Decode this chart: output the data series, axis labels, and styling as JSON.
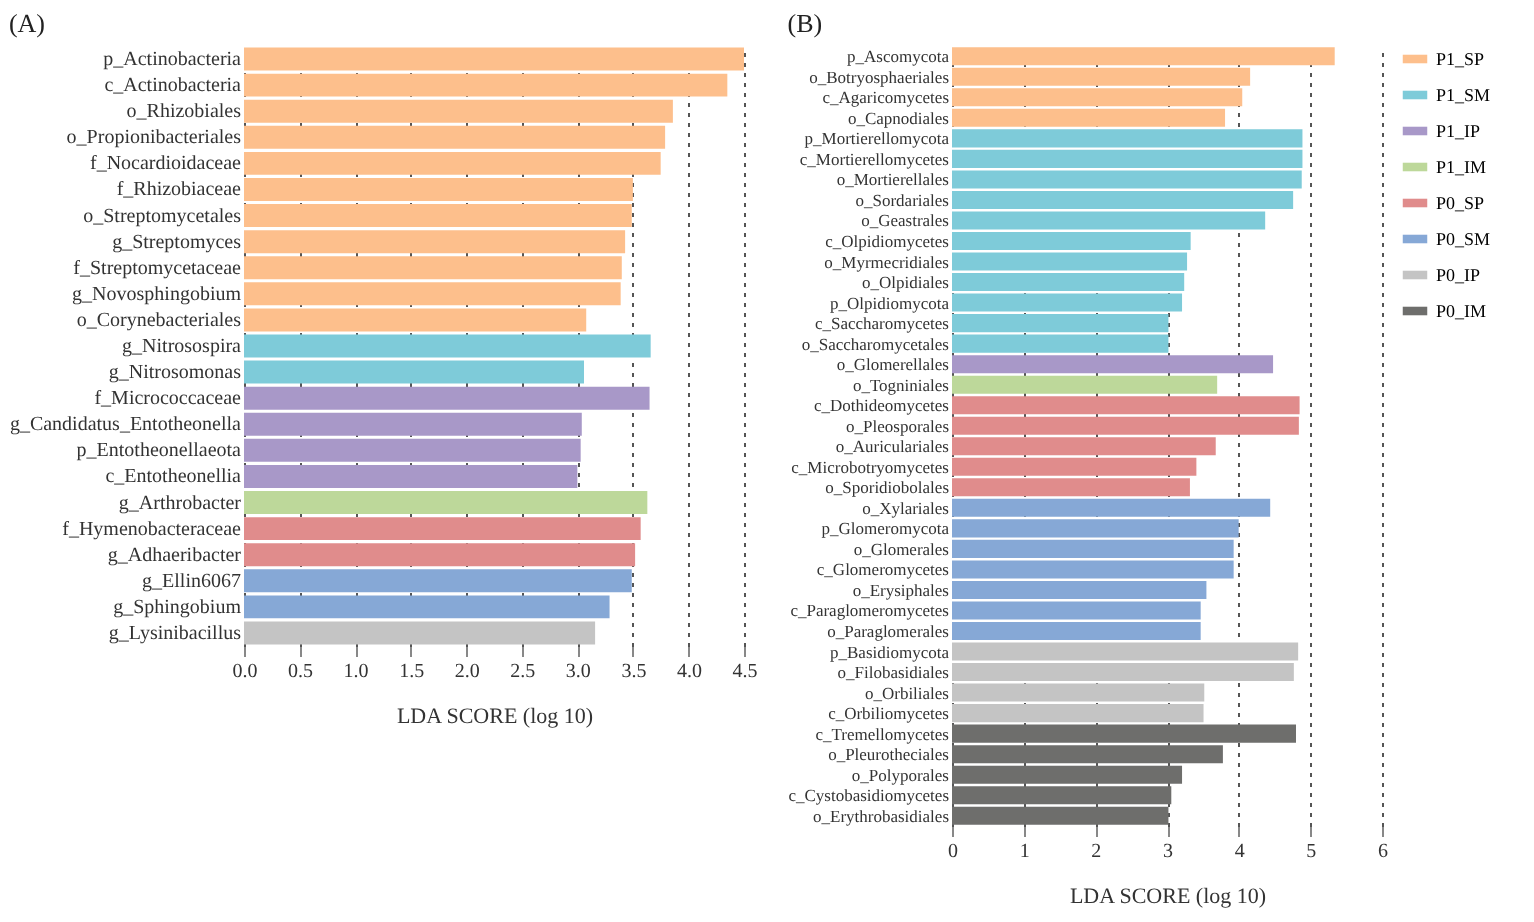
{
  "chart_data": [
    {
      "type": "bar",
      "orientation": "horizontal",
      "title": "(A)",
      "xlabel": "LDA SCORE (log 10)",
      "categories": [
        "p_Actinobacteria",
        "c_Actinobacteria",
        "o_Rhizobiales",
        "o_Propionibacteriales",
        "f_Nocardioidaceae",
        "f_Rhizobiaceae",
        "o_Streptomycetales",
        "g_Streptomyces",
        "f_Streptomycetaceae",
        "g_Novosphingobium",
        "o_Corynebacteriales",
        "g_Nitrosospira",
        "g_Nitrosomonas",
        "f_Micrococcaceae",
        "g_Candidatus_Entotheonella",
        "p_Entotheonellaeota",
        "c_Entotheonellia",
        "g_Arthrobacter",
        "f_Hymenobacteraceae",
        "g_Adhaeribacter",
        "g_Ellin6067",
        "g_Sphingobium",
        "g_Lysinibacillus"
      ],
      "series": [
        {
          "color": "#fdbf8c",
          "values": [
            4.5,
            4.35,
            3.86,
            3.79,
            3.75,
            3.5,
            3.49,
            3.43,
            3.4,
            3.39,
            3.08,
            null,
            null,
            null,
            null,
            null,
            null,
            null,
            null,
            null,
            null,
            null,
            null
          ]
        },
        {
          "color": "#7ecbd9",
          "values": [
            null,
            null,
            null,
            null,
            null,
            null,
            null,
            null,
            null,
            null,
            null,
            3.66,
            3.06,
            null,
            null,
            null,
            null,
            null,
            null,
            null,
            null,
            null,
            null
          ]
        },
        {
          "color": "#a898c8",
          "values": [
            null,
            null,
            null,
            null,
            null,
            null,
            null,
            null,
            null,
            null,
            null,
            null,
            null,
            3.65,
            3.04,
            3.03,
            3.0,
            null,
            null,
            null,
            null,
            null,
            null
          ]
        },
        {
          "color": "#bdd89a",
          "values": [
            null,
            null,
            null,
            null,
            null,
            null,
            null,
            null,
            null,
            null,
            null,
            null,
            null,
            null,
            null,
            null,
            null,
            3.63,
            null,
            null,
            null,
            null,
            null
          ]
        },
        {
          "color": "#e08c8c",
          "values": [
            null,
            null,
            null,
            null,
            null,
            null,
            null,
            null,
            null,
            null,
            null,
            null,
            null,
            null,
            null,
            null,
            null,
            null,
            3.57,
            3.52,
            null,
            null,
            null
          ]
        },
        {
          "color": "#86a8d6",
          "values": [
            null,
            null,
            null,
            null,
            null,
            null,
            null,
            null,
            null,
            null,
            null,
            null,
            null,
            null,
            null,
            null,
            null,
            null,
            null,
            null,
            3.49,
            3.29,
            null
          ]
        },
        {
          "color": "#c4c4c4",
          "values": [
            null,
            null,
            null,
            null,
            null,
            null,
            null,
            null,
            null,
            null,
            null,
            null,
            null,
            null,
            null,
            null,
            null,
            null,
            null,
            null,
            null,
            null,
            3.16
          ]
        }
      ],
      "xlim": [
        0,
        4.5
      ],
      "xticks": [
        {
          "value": 0,
          "label": "0.0"
        },
        0.5,
        {
          "value": 1,
          "label": "1.0"
        },
        1.5,
        {
          "value": 2,
          "label": "2.0"
        },
        2.5,
        {
          "value": 3,
          "label": "3.0"
        },
        3.5,
        {
          "value": 4,
          "label": "4.0"
        },
        4.5
      ],
      "grid": "x",
      "legend": false
    },
    {
      "type": "bar",
      "orientation": "horizontal",
      "title": "(B)",
      "xlabel": "LDA SCORE (log 10)",
      "categories": [
        "p_Ascomycota",
        "o_Botryosphaeriales",
        "c_Agaricomycetes",
        "o_Capnodiales",
        "p_Mortierellomycota",
        "c_Mortierellomycetes",
        "o_Mortierellales",
        "o_Sordariales",
        "o_Geastrales",
        "c_Olpidiomycetes",
        "o_Myrmecridiales",
        "o_Olpidiales",
        "p_Olpidiomycota",
        "c_Saccharomycetes",
        "o_Saccharomycetales",
        "o_Glomerellales",
        "o_Togniniales",
        "c_Dothideomycetes",
        "o_Pleosporales",
        "o_Auriculariales",
        "c_Microbotryomycetes",
        "o_Sporidiobolales",
        "o_Xylariales",
        "p_Glomeromycota",
        "o_Glomerales",
        "c_Glomeromycetes",
        "o_Erysiphales",
        "c_Paraglomeromycetes",
        "o_Paraglomerales",
        "p_Basidiomycota",
        "o_Filobasidiales",
        "o_Orbiliales",
        "c_Orbiliomycetes",
        "c_Tremellomycetes",
        "o_Pleurotheciales",
        "o_Polyporales",
        "c_Cystobasidiomycetes",
        "o_Erythrobasidiales"
      ],
      "series": [
        {
          "name": "P1_SP",
          "color": "#fdbf8c",
          "values": [
            5.34,
            4.16,
            4.05,
            3.81,
            null,
            null,
            null,
            null,
            null,
            null,
            null,
            null,
            null,
            null,
            null,
            null,
            null,
            null,
            null,
            null,
            null,
            null,
            null,
            null,
            null,
            null,
            null,
            null,
            null,
            null,
            null,
            null,
            null,
            null,
            null,
            null,
            null,
            null
          ]
        },
        {
          "name": "P1_SM",
          "color": "#7ecbd9",
          "values": [
            null,
            null,
            null,
            null,
            4.89,
            4.89,
            4.88,
            4.76,
            4.37,
            3.33,
            3.28,
            3.24,
            3.21,
            3.02,
            3.02,
            null,
            null,
            null,
            null,
            null,
            null,
            null,
            null,
            null,
            null,
            null,
            null,
            null,
            null,
            null,
            null,
            null,
            null,
            null,
            null,
            null,
            null,
            null
          ]
        },
        {
          "name": "P1_IP",
          "color": "#a898c8",
          "values": [
            null,
            null,
            null,
            null,
            null,
            null,
            null,
            null,
            null,
            null,
            null,
            null,
            null,
            null,
            null,
            4.48,
            null,
            null,
            null,
            null,
            null,
            null,
            null,
            null,
            null,
            null,
            null,
            null,
            null,
            null,
            null,
            null,
            null,
            null,
            null,
            null,
            null,
            null
          ]
        },
        {
          "name": "P1_IM",
          "color": "#bdd89a",
          "values": [
            null,
            null,
            null,
            null,
            null,
            null,
            null,
            null,
            null,
            null,
            null,
            null,
            null,
            null,
            null,
            null,
            3.7,
            null,
            null,
            null,
            null,
            null,
            null,
            null,
            null,
            null,
            null,
            null,
            null,
            null,
            null,
            null,
            null,
            null,
            null,
            null,
            null,
            null
          ]
        },
        {
          "name": "P0_SP",
          "color": "#e08c8c",
          "values": [
            null,
            null,
            null,
            null,
            null,
            null,
            null,
            null,
            null,
            null,
            null,
            null,
            null,
            null,
            null,
            null,
            null,
            4.85,
            4.84,
            3.68,
            3.41,
            3.32,
            null,
            null,
            null,
            null,
            null,
            null,
            null,
            null,
            null,
            null,
            null,
            null,
            null,
            null,
            null,
            null
          ]
        },
        {
          "name": "P0_SM",
          "color": "#86a8d6",
          "values": [
            null,
            null,
            null,
            null,
            null,
            null,
            null,
            null,
            null,
            null,
            null,
            null,
            null,
            null,
            null,
            null,
            null,
            null,
            null,
            null,
            null,
            null,
            4.44,
            4.0,
            3.93,
            3.93,
            3.55,
            3.47,
            3.47,
            null,
            null,
            null,
            null,
            null,
            null,
            null,
            null,
            null
          ]
        },
        {
          "name": "P0_IP",
          "color": "#c4c4c4",
          "values": [
            null,
            null,
            null,
            null,
            null,
            null,
            null,
            null,
            null,
            null,
            null,
            null,
            null,
            null,
            null,
            null,
            null,
            null,
            null,
            null,
            null,
            null,
            null,
            null,
            null,
            null,
            null,
            null,
            null,
            4.83,
            4.77,
            3.52,
            3.51,
            null,
            null,
            null,
            null,
            null
          ]
        },
        {
          "name": "P0_IM",
          "color": "#6e6e6c",
          "values": [
            null,
            null,
            null,
            null,
            null,
            null,
            null,
            null,
            null,
            null,
            null,
            null,
            null,
            null,
            null,
            null,
            null,
            null,
            null,
            null,
            null,
            null,
            null,
            null,
            null,
            null,
            null,
            null,
            null,
            null,
            null,
            null,
            null,
            4.8,
            3.78,
            3.21,
            3.06,
            3.02
          ]
        }
      ],
      "xlim": [
        0,
        6
      ],
      "xticks": [
        0,
        1,
        2,
        3,
        4,
        5,
        6
      ],
      "grid": "x",
      "legend": "right"
    }
  ]
}
